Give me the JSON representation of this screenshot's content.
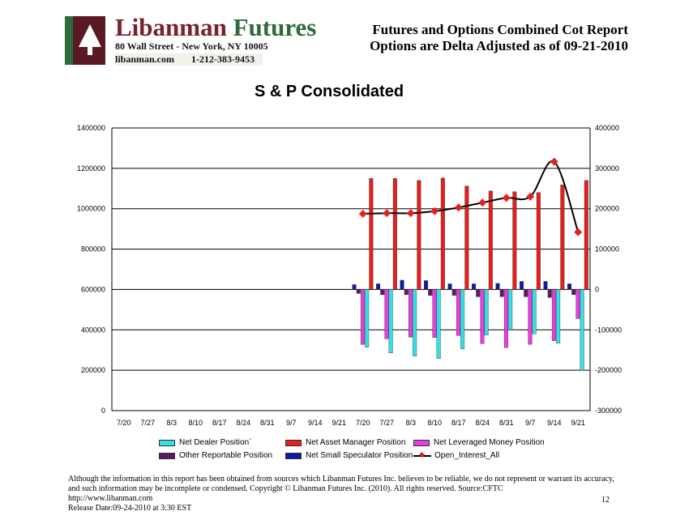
{
  "header": {
    "logo_name_1": "Libanman",
    "logo_name_2": "Futures",
    "logo_address": "80 Wall Street - New York, NY 10005",
    "logo_site": "libanman.com",
    "logo_phone": "1-212-383-9453",
    "report_title_line1": "Futures and Options Combined Cot Report",
    "report_title_line2": "Options are Delta Adjusted  as of 09-21-2010"
  },
  "colors": {
    "dealer": "#33e0e6",
    "asset_manager": "#e5201b",
    "leveraged": "#e63ee0",
    "other_reportable": "#5b1a68",
    "small_speculator": "#0d1ba8",
    "open_interest_line": "#000000",
    "open_interest_marker": "#e5201b"
  },
  "chart_data": {
    "type": "bar",
    "title": "S & P Consolidated",
    "categories": [
      "7/20",
      "7/27",
      "8/3",
      "8/10",
      "8/17",
      "8/24",
      "8/31",
      "9/7",
      "9/14",
      "9/21",
      "7/20",
      "7/27",
      "8/3",
      "8/10",
      "8/17",
      "8/24",
      "8/31",
      "9/7",
      "9/14",
      "9/21"
    ],
    "left_axis": {
      "min": 0,
      "max": 1400000,
      "ticks": [
        0,
        200000,
        400000,
        600000,
        800000,
        1000000,
        1200000,
        1400000
      ]
    },
    "right_axis": {
      "min": -300000,
      "max": 400000,
      "ticks": [
        -300000,
        -200000,
        -100000,
        0,
        100000,
        200000,
        300000,
        400000
      ]
    },
    "grid": true,
    "legend_position": "bottom",
    "series": [
      {
        "name": "Net Dealer Position`",
        "axis": "right",
        "kind": "bar",
        "values": [
          null,
          null,
          null,
          null,
          null,
          null,
          null,
          null,
          null,
          null,
          -143000,
          -157000,
          -165000,
          -171000,
          -147000,
          -113000,
          -100000,
          -110000,
          -133000,
          -200000
        ]
      },
      {
        "name": "Net Asset Manager Position",
        "axis": "right",
        "kind": "bar",
        "values": [
          null,
          null,
          null,
          null,
          null,
          null,
          null,
          null,
          null,
          null,
          275000,
          275000,
          270000,
          276000,
          256000,
          244000,
          242000,
          240000,
          259000,
          270000
        ]
      },
      {
        "name": "Net Leveraged Money Position",
        "axis": "right",
        "kind": "bar",
        "values": [
          null,
          null,
          null,
          null,
          null,
          null,
          null,
          null,
          null,
          null,
          -136000,
          -122000,
          -118000,
          -119000,
          -114000,
          -134000,
          -144000,
          -136000,
          -127000,
          -72000
        ]
      },
      {
        "name": "Other Reportable Position",
        "axis": "right",
        "kind": "bar",
        "values": [
          null,
          null,
          null,
          null,
          null,
          null,
          null,
          null,
          null,
          null,
          -10000,
          -13000,
          -13000,
          -15000,
          -15000,
          -18000,
          -18000,
          -18000,
          -20000,
          -13000
        ]
      },
      {
        "name": "Net Small Speculator Position",
        "axis": "right",
        "kind": "bar",
        "values": [
          null,
          null,
          null,
          null,
          null,
          null,
          null,
          null,
          null,
          null,
          12000,
          14000,
          23000,
          22000,
          14000,
          14000,
          15000,
          20000,
          20000,
          14000
        ]
      },
      {
        "name": "Open_Interest_All",
        "axis": "left",
        "kind": "line",
        "values": [
          null,
          null,
          null,
          null,
          null,
          null,
          null,
          null,
          null,
          null,
          975000,
          978000,
          978000,
          988000,
          1006000,
          1030000,
          1054000,
          1060000,
          1233000,
          884000
        ]
      }
    ]
  },
  "footer": {
    "disclaimer": "Although the information in this report has been obtained from sources which Libanman Futures Inc. believes to be reliable, we do not represent or warrant its accuracy, and such information may be incomplete or condensed. Copyright © Libanman Futures Inc. (2010). All rights reserved.  Source:CFTC",
    "url": "http://www.libanman.com",
    "release": "Release Date:09-24-2010 at 3:30 EST",
    "page_number": "12"
  }
}
